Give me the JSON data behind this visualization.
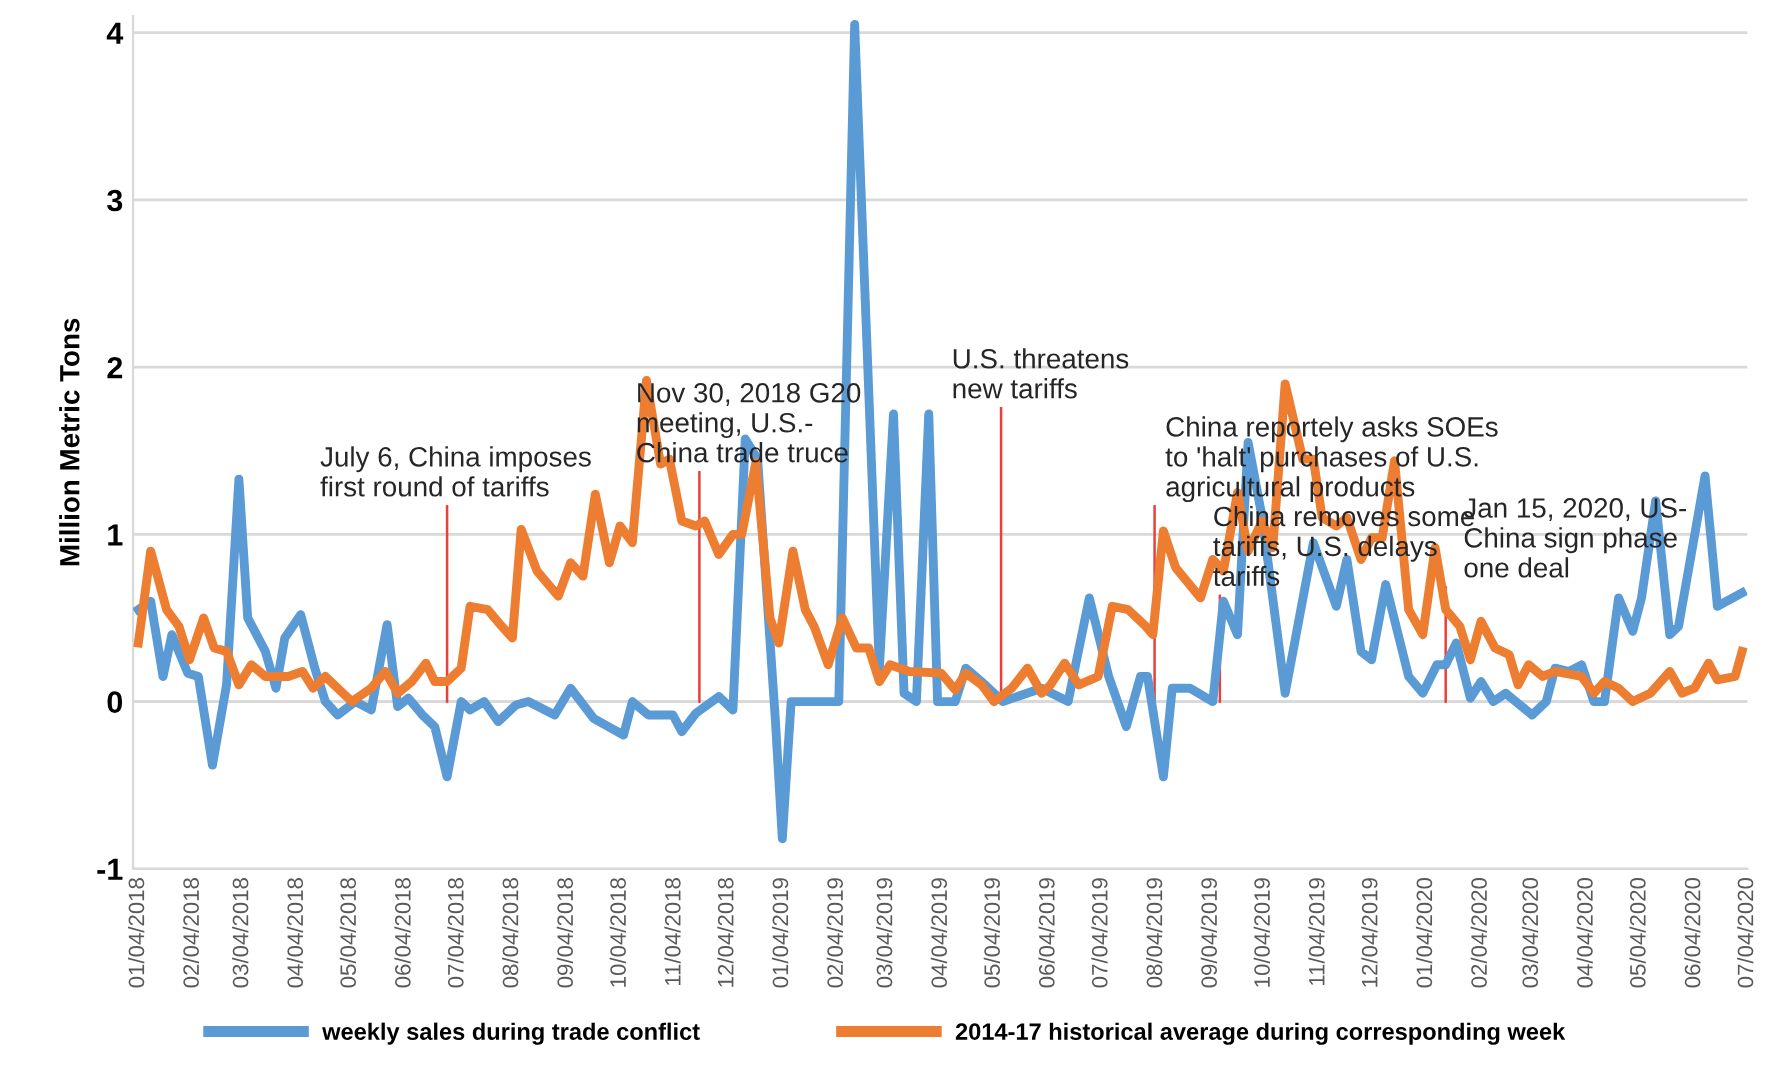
{
  "chart_data": {
    "type": "line",
    "ylabel": "Million Metric Tons",
    "ylim": [
      -1,
      4.1
    ],
    "yticks": [
      -1,
      0,
      1,
      2,
      3,
      4
    ],
    "xlim": [
      "2018-01-01",
      "2020-07-04"
    ],
    "xticks": [
      {
        "value": "2018-01-04",
        "label": "01/04/2018"
      },
      {
        "value": "2018-02-04",
        "label": "02/04/2018"
      },
      {
        "value": "2018-03-04",
        "label": "03/04/2018"
      },
      {
        "value": "2018-04-04",
        "label": "04/04/2018"
      },
      {
        "value": "2018-05-04",
        "label": "05/04/2018"
      },
      {
        "value": "2018-06-04",
        "label": "06/04/2018"
      },
      {
        "value": "2018-07-04",
        "label": "07/04/2018"
      },
      {
        "value": "2018-08-04",
        "label": "08/04/2018"
      },
      {
        "value": "2018-09-04",
        "label": "09/04/2018"
      },
      {
        "value": "2018-10-04",
        "label": "10/04/2018"
      },
      {
        "value": "2018-11-04",
        "label": "11/04/2018"
      },
      {
        "value": "2018-12-04",
        "label": "12/04/2018"
      },
      {
        "value": "2019-01-04",
        "label": "01/04/2019"
      },
      {
        "value": "2019-02-04",
        "label": "02/04/2019"
      },
      {
        "value": "2019-03-04",
        "label": "03/04/2019"
      },
      {
        "value": "2019-04-04",
        "label": "04/04/2019"
      },
      {
        "value": "2019-05-04",
        "label": "05/04/2019"
      },
      {
        "value": "2019-06-04",
        "label": "06/04/2019"
      },
      {
        "value": "2019-07-04",
        "label": "07/04/2019"
      },
      {
        "value": "2019-08-04",
        "label": "08/04/2019"
      },
      {
        "value": "2019-09-04",
        "label": "09/04/2019"
      },
      {
        "value": "2019-10-04",
        "label": "10/04/2019"
      },
      {
        "value": "2019-11-04",
        "label": "11/04/2019"
      },
      {
        "value": "2019-12-04",
        "label": "12/04/2019"
      },
      {
        "value": "2020-01-04",
        "label": "01/04/2020"
      },
      {
        "value": "2020-02-04",
        "label": "02/04/2020"
      },
      {
        "value": "2020-03-04",
        "label": "03/04/2020"
      },
      {
        "value": "2020-04-04",
        "label": "04/04/2020"
      },
      {
        "value": "2020-05-04",
        "label": "05/04/2020"
      },
      {
        "value": "2020-06-04",
        "label": "06/04/2020"
      },
      {
        "value": "2020-07-04",
        "label": "07/04/2020"
      }
    ],
    "grid": "y",
    "legend": "bottom",
    "marker": "none",
    "line_style": "solid",
    "series": [
      {
        "name": "weekly sales during trade conflict",
        "color": "#5b9bd5",
        "x": [
          "2018-01-04",
          "2018-01-11",
          "2018-01-18",
          "2018-01-23",
          "2018-02-01",
          "2018-02-07",
          "2018-02-15",
          "2018-02-23",
          "2018-03-02",
          "2018-03-07",
          "2018-03-17",
          "2018-03-23",
          "2018-03-28",
          "2018-04-06",
          "2018-04-14",
          "2018-04-20",
          "2018-04-27",
          "2018-05-07",
          "2018-05-16",
          "2018-05-25",
          "2018-05-31",
          "2018-06-06",
          "2018-06-14",
          "2018-06-21",
          "2018-06-28",
          "2018-07-06",
          "2018-07-11",
          "2018-07-19",
          "2018-07-27",
          "2018-08-06",
          "2018-08-13",
          "2018-08-28",
          "2018-09-06",
          "2018-09-19",
          "2018-10-06",
          "2018-10-11",
          "2018-10-20",
          "2018-11-03",
          "2018-11-08",
          "2018-11-16",
          "2018-11-29",
          "2018-12-07",
          "2018-12-14",
          "2018-12-21",
          "2018-12-31",
          "2019-01-04",
          "2019-01-09",
          "2019-02-05",
          "2019-02-14",
          "2019-02-28",
          "2019-03-08",
          "2019-03-14",
          "2019-03-21",
          "2019-03-28",
          "2019-04-02",
          "2019-04-12",
          "2019-04-18",
          "2019-04-29",
          "2019-05-09",
          "2019-05-31",
          "2019-06-15",
          "2019-06-27",
          "2019-07-08",
          "2019-07-18",
          "2019-07-26",
          "2019-07-30",
          "2019-08-08",
          "2019-08-13",
          "2019-08-23",
          "2019-09-05",
          "2019-09-11",
          "2019-09-19",
          "2019-09-25",
          "2019-10-03",
          "2019-10-16",
          "2019-11-01",
          "2019-11-14",
          "2019-11-20",
          "2019-11-28",
          "2019-12-04",
          "2019-12-12",
          "2019-12-25",
          "2020-01-02",
          "2020-01-10",
          "2020-01-15",
          "2020-01-21",
          "2020-01-29",
          "2020-02-04",
          "2020-02-11",
          "2020-02-18",
          "2020-03-04",
          "2020-03-12",
          "2020-03-17",
          "2020-03-25",
          "2020-04-01",
          "2020-04-08",
          "2020-04-14",
          "2020-04-22",
          "2020-04-30",
          "2020-05-05",
          "2020-05-13",
          "2020-05-21",
          "2020-05-26",
          "2020-06-10",
          "2020-06-17",
          "2020-07-01"
        ],
        "values": [
          0.55,
          0.6,
          0.15,
          0.4,
          0.17,
          0.15,
          -0.38,
          0.1,
          1.33,
          0.5,
          0.3,
          0.08,
          0.38,
          0.52,
          0.2,
          0.0,
          -0.08,
          0.0,
          -0.05,
          0.46,
          -0.03,
          0.02,
          -0.08,
          -0.15,
          -0.45,
          0.0,
          -0.05,
          0.0,
          -0.12,
          -0.02,
          0.0,
          -0.08,
          0.08,
          -0.1,
          -0.2,
          0.0,
          -0.08,
          -0.08,
          -0.18,
          -0.07,
          0.03,
          -0.05,
          1.57,
          1.45,
          -0.1,
          -0.82,
          0.0,
          0.0,
          4.05,
          0.2,
          1.72,
          0.05,
          0.0,
          1.72,
          0.0,
          0.0,
          0.2,
          0.1,
          0.0,
          0.08,
          0.0,
          0.62,
          0.15,
          -0.15,
          0.15,
          0.15,
          -0.45,
          0.08,
          0.08,
          0.0,
          0.6,
          0.4,
          1.55,
          1.1,
          0.05,
          0.95,
          0.57,
          0.85,
          0.3,
          0.25,
          0.7,
          0.15,
          0.05,
          0.22,
          0.22,
          0.35,
          0.02,
          0.12,
          0.0,
          0.05,
          -0.08,
          0.0,
          0.2,
          0.18,
          0.22,
          0.0,
          0.0,
          0.62,
          0.42,
          0.62,
          1.2,
          0.4,
          0.45,
          1.35,
          0.57,
          0.65
        ]
      },
      {
        "name": "2014-17 historical average during corresponding week",
        "color": "#ed7d31",
        "x": [
          "2018-01-04",
          "2018-01-11",
          "2018-01-20",
          "2018-01-27",
          "2018-02-02",
          "2018-02-10",
          "2018-02-16",
          "2018-02-23",
          "2018-03-02",
          "2018-03-09",
          "2018-03-17",
          "2018-03-30",
          "2018-04-07",
          "2018-04-13",
          "2018-04-20",
          "2018-04-27",
          "2018-05-05",
          "2018-05-16",
          "2018-05-24",
          "2018-05-31",
          "2018-06-08",
          "2018-06-16",
          "2018-06-21",
          "2018-06-28",
          "2018-07-06",
          "2018-07-11",
          "2018-07-21",
          "2018-07-29",
          "2018-08-04",
          "2018-08-09",
          "2018-08-18",
          "2018-08-30",
          "2018-09-06",
          "2018-09-13",
          "2018-09-20",
          "2018-09-28",
          "2018-10-04",
          "2018-10-11",
          "2018-10-19",
          "2018-10-27",
          "2018-11-01",
          "2018-11-08",
          "2018-11-16",
          "2018-11-21",
          "2018-11-29",
          "2018-12-07",
          "2018-12-12",
          "2018-12-20",
          "2018-12-28",
          "2019-01-02",
          "2019-01-10",
          "2019-01-17",
          "2019-01-22",
          "2019-01-30",
          "2019-02-07",
          "2019-02-15",
          "2019-02-22",
          "2019-02-28",
          "2019-03-06",
          "2019-03-17",
          "2019-04-04",
          "2019-04-12",
          "2019-04-18",
          "2019-04-27",
          "2019-05-04",
          "2019-05-14",
          "2019-05-23",
          "2019-05-31",
          "2019-06-05",
          "2019-06-13",
          "2019-06-21",
          "2019-07-02",
          "2019-07-10",
          "2019-07-19",
          "2019-07-29",
          "2019-08-02",
          "2019-08-08",
          "2019-08-15",
          "2019-08-29",
          "2019-09-05",
          "2019-09-11",
          "2019-09-19",
          "2019-09-25",
          "2019-10-03",
          "2019-10-09",
          "2019-10-16",
          "2019-10-26",
          "2019-11-01",
          "2019-11-06",
          "2019-11-14",
          "2019-11-20",
          "2019-11-28",
          "2019-12-04",
          "2019-12-10",
          "2019-12-17",
          "2019-12-25",
          "2020-01-02",
          "2020-01-09",
          "2020-01-15",
          "2020-01-23",
          "2020-01-29",
          "2020-02-04",
          "2020-02-12",
          "2020-02-20",
          "2020-02-25",
          "2020-03-02",
          "2020-03-10",
          "2020-03-17",
          "2020-04-01",
          "2020-04-08",
          "2020-04-14",
          "2020-04-22",
          "2020-04-30",
          "2020-05-10",
          "2020-05-21",
          "2020-05-28",
          "2020-06-04",
          "2020-06-12",
          "2020-06-17",
          "2020-06-27",
          "2020-07-01"
        ],
        "values": [
          0.35,
          0.9,
          0.55,
          0.45,
          0.25,
          0.5,
          0.32,
          0.3,
          0.1,
          0.22,
          0.15,
          0.15,
          0.18,
          0.08,
          0.15,
          0.08,
          0.0,
          0.08,
          0.18,
          0.05,
          0.12,
          0.23,
          0.12,
          0.12,
          0.2,
          0.57,
          0.55,
          0.45,
          0.38,
          1.03,
          0.78,
          0.63,
          0.83,
          0.75,
          1.24,
          0.83,
          1.05,
          0.95,
          1.92,
          1.42,
          1.45,
          1.08,
          1.05,
          1.08,
          0.88,
          1.0,
          1.0,
          1.43,
          0.5,
          0.35,
          0.9,
          0.55,
          0.45,
          0.22,
          0.5,
          0.32,
          0.32,
          0.12,
          0.22,
          0.18,
          0.17,
          0.07,
          0.17,
          0.1,
          0.0,
          0.08,
          0.2,
          0.05,
          0.1,
          0.23,
          0.1,
          0.15,
          0.57,
          0.55,
          0.45,
          0.4,
          1.02,
          0.8,
          0.62,
          0.85,
          0.78,
          1.25,
          0.9,
          1.08,
          0.92,
          1.9,
          1.45,
          1.45,
          1.1,
          1.05,
          1.1,
          0.85,
          0.98,
          0.98,
          1.44,
          0.55,
          0.4,
          0.92,
          0.55,
          0.45,
          0.25,
          0.48,
          0.32,
          0.28,
          0.1,
          0.22,
          0.15,
          0.18,
          0.15,
          0.05,
          0.12,
          0.08,
          0.0,
          0.05,
          0.18,
          0.05,
          0.08,
          0.23,
          0.13,
          0.15,
          0.3
        ]
      }
    ],
    "ref_lines": [
      {
        "axis": "x",
        "value": "2018-06-28",
        "color": "#e8403a",
        "label": "July 6, China imposes\nfirst round of tariffs"
      },
      {
        "axis": "x",
        "value": "2018-11-18",
        "color": "#e8403a",
        "label": "Nov 30, 2018 G20\nmeeting, U.S.-\nChina trade truce"
      },
      {
        "axis": "x",
        "value": "2019-05-08",
        "color": "#e8403a",
        "label": "U.S. threatens\nnew tariffs"
      },
      {
        "axis": "x",
        "value": "2019-08-03",
        "color": "#e8403a",
        "label": "China reportely asks SOEs\nto 'halt' purchases of U.S.\nagricultural products"
      },
      {
        "axis": "x",
        "value": "2019-09-09",
        "color": "#e8403a",
        "label": "China removes some\ntariffs, U.S. delays\ntariffs"
      },
      {
        "axis": "x",
        "value": "2020-01-15",
        "color": "#e8403a",
        "label": "Jan 15, 2020, US-\nChina sign phase\none deal"
      }
    ]
  }
}
